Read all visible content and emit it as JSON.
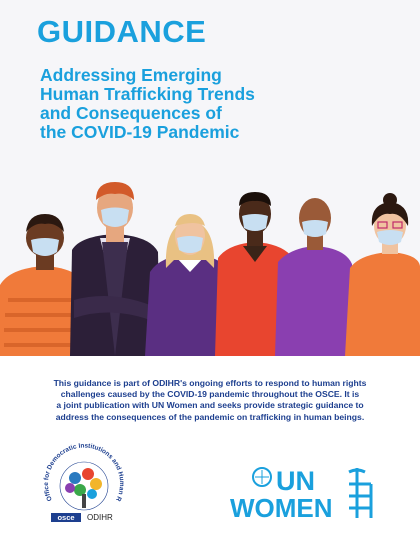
{
  "header": {
    "label": "GUIDANCE",
    "title_lines": [
      "Addressing Emerging",
      "Human Trafficking Trends",
      "and Consequences of",
      "the COVID-19 Pandemic"
    ]
  },
  "description_lines": [
    "This guidance is part of ODIHR's ongoing efforts to respond to human rights",
    "challenges caused by the COVID-19 pandemic throughout the OSCE. It is",
    "a joint publication with UN Women and seeks provide strategic guidance to",
    "address the consequences of the pandemic on trafficking in human beings."
  ],
  "logos": {
    "odihr": {
      "arc_text": "Office for Democratic Institutions and Human Rights",
      "osce": "osce",
      "name": "ODIHR"
    },
    "unwomen": {
      "un": "UN",
      "women": "WOMEN"
    }
  }
}
